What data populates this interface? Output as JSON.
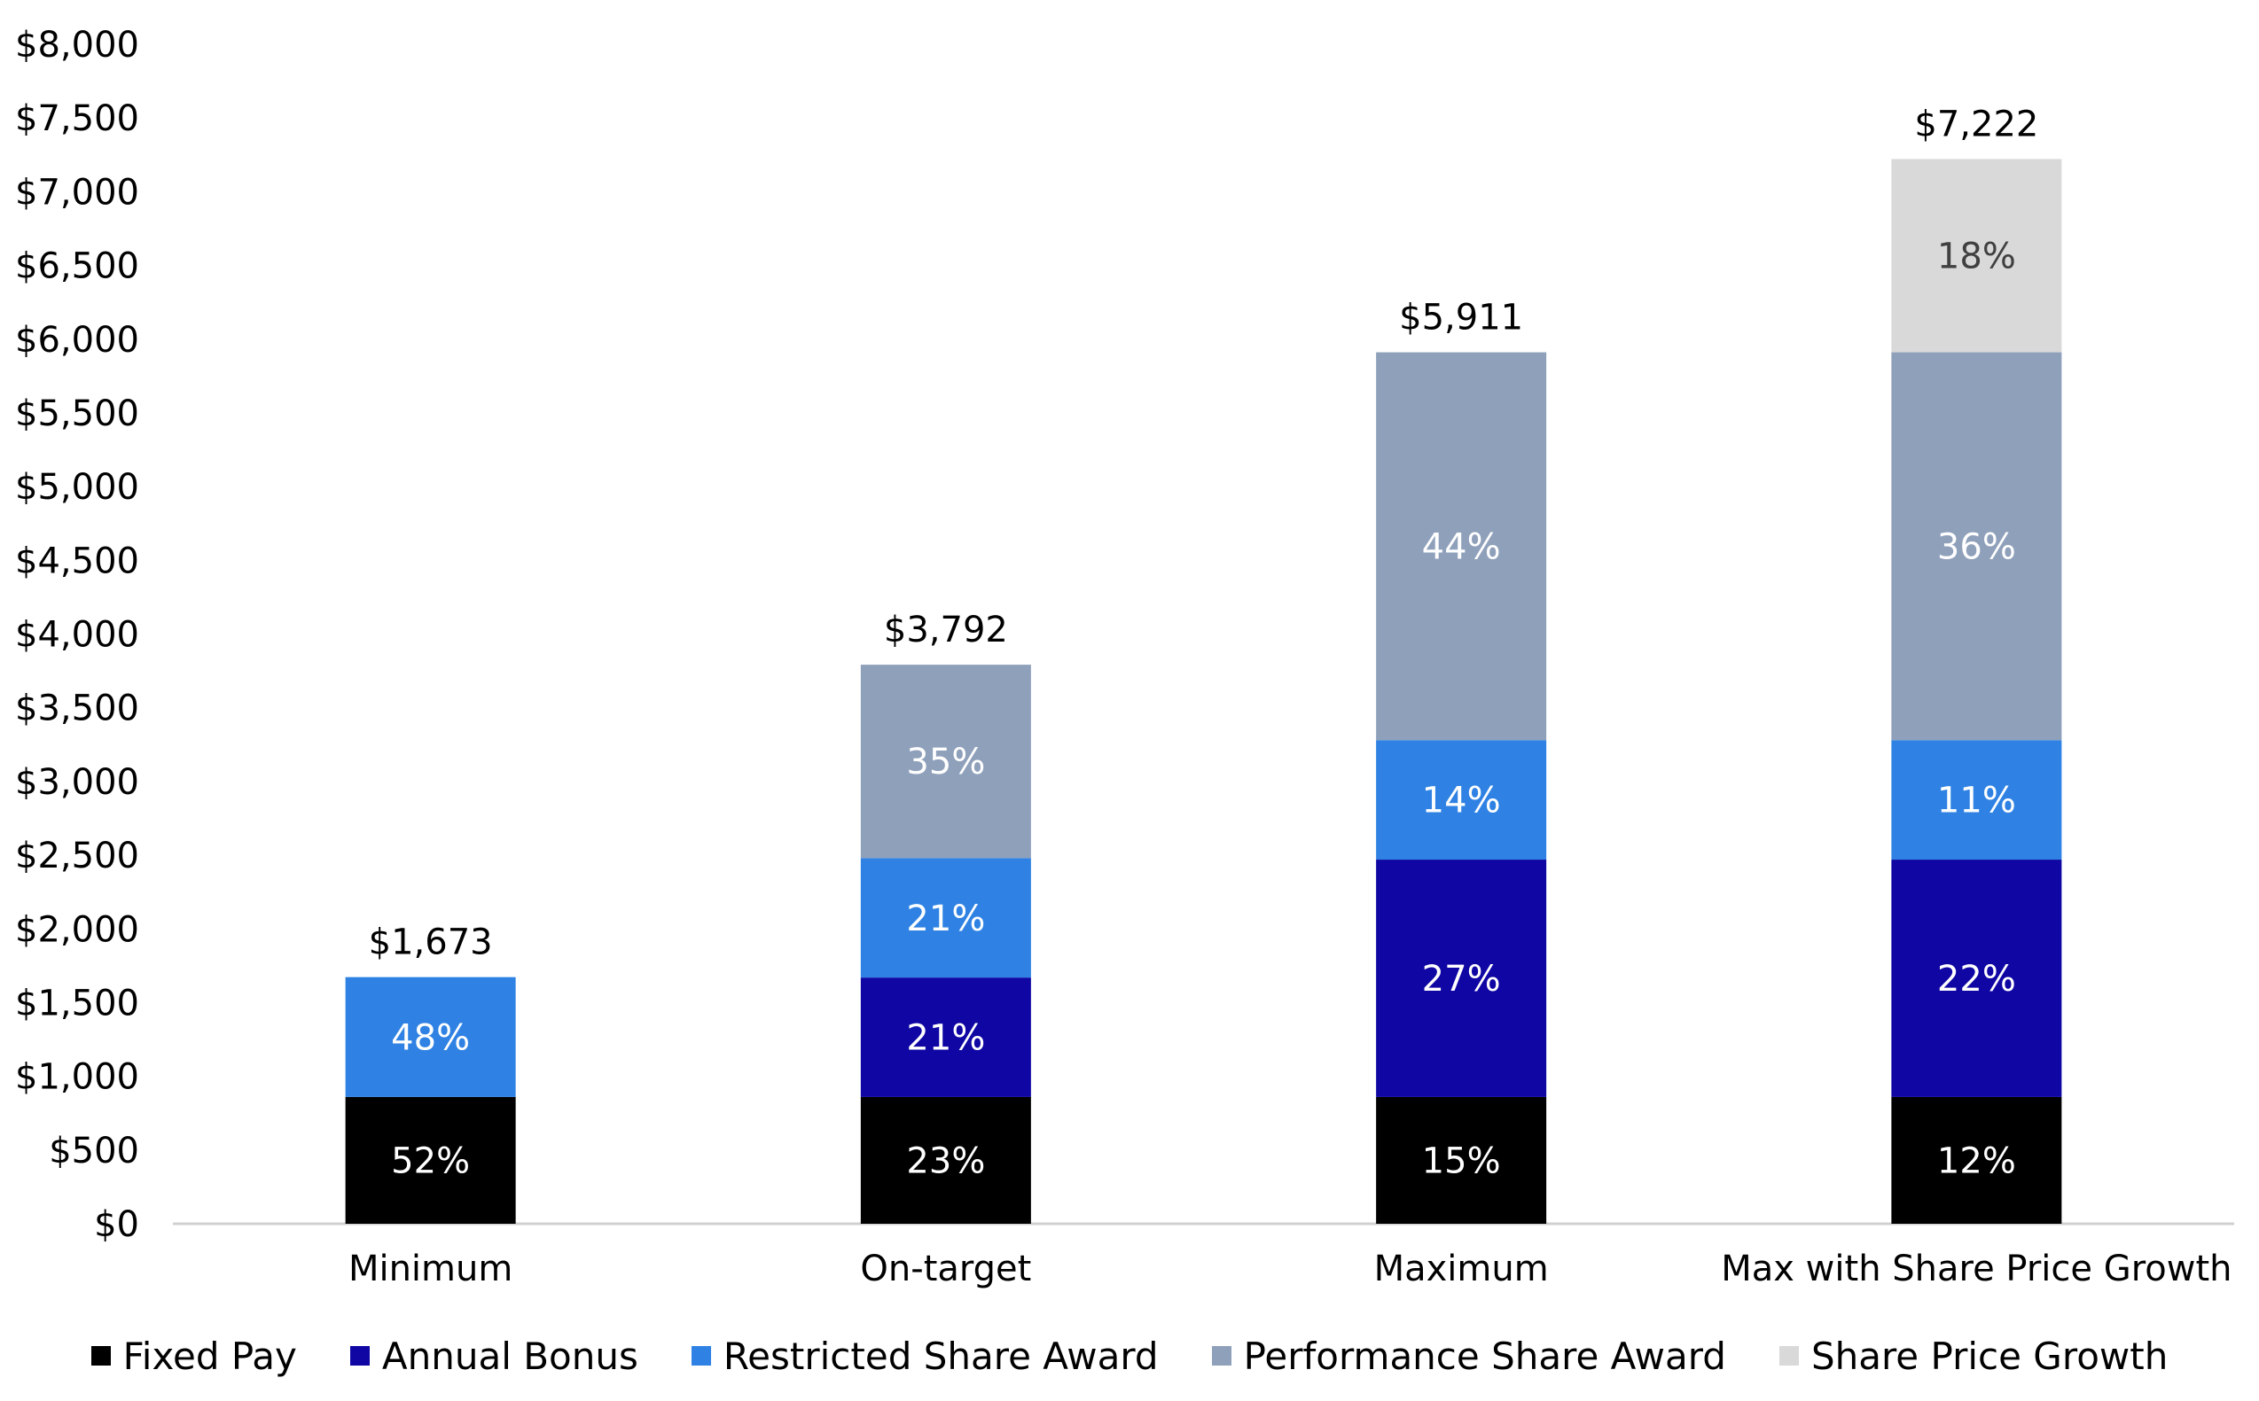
{
  "chart_data": {
    "type": "bar",
    "stacked": true,
    "title": "",
    "xlabel": "",
    "ylabel": "",
    "ylim": [
      0,
      8000
    ],
    "yticks": [
      "$0",
      "$500",
      "$1,000",
      "$1,500",
      "$2,000",
      "$2,500",
      "$3,000",
      "$3,500",
      "$4,000",
      "$4,500",
      "$5,000",
      "$5,500",
      "$6,000",
      "$6,500",
      "$7,000",
      "$7,500",
      "$8,000"
    ],
    "categories": [
      "Minimum",
      "On-target",
      "Maximum",
      "Max with Share Price Growth"
    ],
    "totals": [
      1673,
      3792,
      5911,
      7222
    ],
    "total_labels": [
      "$1,673",
      "$3,792",
      "$5,911",
      "$7,222"
    ],
    "series": [
      {
        "name": "Fixed Pay",
        "color": "#000000",
        "text_color": "#ffffff",
        "values": [
          860,
          860,
          860,
          860
        ],
        "labels": [
          "52%",
          "23%",
          "15%",
          "12%"
        ]
      },
      {
        "name": "Annual Bonus",
        "color": "#0f06a3",
        "text_color": "#ffffff",
        "values": [
          0,
          810,
          1610,
          1610
        ],
        "labels": [
          "",
          "21%",
          "27%",
          "22%"
        ]
      },
      {
        "name": "Restricted Share Award",
        "color": "#2f82e3",
        "text_color": "#ffffff",
        "values": [
          813,
          810,
          810,
          810
        ],
        "labels": [
          "48%",
          "21%",
          "14%",
          "11%"
        ]
      },
      {
        "name": "Performance Share Award",
        "color": "#8fa0bb",
        "text_color": "#ffffff",
        "values": [
          0,
          1312,
          2631,
          2631
        ],
        "labels": [
          "",
          "35%",
          "44%",
          "36%"
        ]
      },
      {
        "name": "Share Price Growth",
        "color": "#d9d9d9",
        "text_color": "#404040",
        "values": [
          0,
          0,
          0,
          1311
        ],
        "labels": [
          "",
          "",
          "",
          "18%"
        ]
      }
    ],
    "legend_position": "bottom",
    "grid": false
  }
}
